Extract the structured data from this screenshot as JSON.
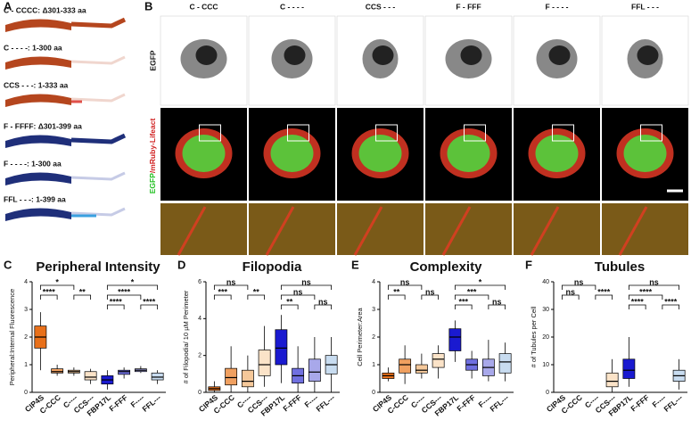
{
  "figure": {
    "A": {
      "letter": "A",
      "labels": [
        "C - CCCC: Δ301-333 aa",
        "C - - - -: 1-300 aa",
        "CCS - - -: 1-333 aa",
        "F - FFFF: Δ301-399 aa",
        "F - - - -: 1-300 aa",
        "FFL - - -: 1-399 aa"
      ]
    },
    "B": {
      "letter": "B",
      "columns": [
        "C - CCC",
        "C - - - -",
        "CCS - - -",
        "F - FFF",
        "F - - - -",
        "FFL - - -"
      ],
      "row1": "EGFP",
      "row2a": "EGFP",
      "row2b": "/mRuby-Lifeact"
    }
  },
  "chart_data": [
    {
      "type": "box",
      "panel": "C",
      "title": "Peripheral Intensity",
      "y_label": "Peripheral:Internal Fluorescence",
      "categories": [
        "CIP4S",
        "C-CCC",
        "C----",
        "CCS---",
        "FBP17L",
        "F-FFF",
        "F----",
        "FFL---"
      ],
      "colors": [
        "#e8701a",
        "#f0a060",
        "#f5c89a",
        "#fbe3c8",
        "#1a1ad0",
        "#7070e0",
        "#a8a8ea",
        "#c8dcf0"
      ],
      "boxes": [
        {
          "min": 0.8,
          "q1": 1.6,
          "median": 2.0,
          "q3": 2.4,
          "max": 2.9
        },
        {
          "min": 0.6,
          "q1": 0.7,
          "median": 0.75,
          "q3": 0.85,
          "max": 1.0
        },
        {
          "min": 0.6,
          "q1": 0.7,
          "median": 0.75,
          "q3": 0.8,
          "max": 0.9
        },
        {
          "min": 0.3,
          "q1": 0.45,
          "median": 0.55,
          "q3": 0.75,
          "max": 0.85
        },
        {
          "min": 0.1,
          "q1": 0.3,
          "median": 0.45,
          "q3": 0.6,
          "max": 0.8
        },
        {
          "min": 0.5,
          "q1": 0.65,
          "median": 0.75,
          "q3": 0.8,
          "max": 0.9
        },
        {
          "min": 0.7,
          "q1": 0.75,
          "median": 0.8,
          "q3": 0.85,
          "max": 0.95
        },
        {
          "min": 0.3,
          "q1": 0.45,
          "median": 0.55,
          "q3": 0.7,
          "max": 0.8
        }
      ],
      "ylim": [
        0,
        4
      ],
      "yticks": [
        0,
        1,
        2,
        3,
        4
      ],
      "annotations": [
        {
          "between": [
            "CIP4S",
            "C----"
          ],
          "label": "*"
        },
        {
          "between": [
            "CIP4S",
            "C-CCC"
          ],
          "label": "****"
        },
        {
          "between": [
            "C----",
            "CCS---"
          ],
          "label": "**"
        },
        {
          "between": [
            "FBP17L",
            "FFL---"
          ],
          "label": "*"
        },
        {
          "between": [
            "FBP17L",
            "F----"
          ],
          "label": "****"
        },
        {
          "between": [
            "FBP17L",
            "F-FFF"
          ],
          "label": "****"
        },
        {
          "between": [
            "F----",
            "FFL---"
          ],
          "label": "****"
        }
      ]
    },
    {
      "type": "box",
      "panel": "D",
      "title": "Filopodia",
      "y_label": "# of Filopodia/ 10 µM Perimeter",
      "categories": [
        "CIP4S",
        "C-CCC",
        "C----",
        "CCS---",
        "FBP17L",
        "F-FFF",
        "F----",
        "FFL---"
      ],
      "colors": [
        "#e8701a",
        "#f0a060",
        "#f5c89a",
        "#fbe3c8",
        "#1a1ad0",
        "#7070e0",
        "#a8a8ea",
        "#c8dcf0"
      ],
      "boxes": [
        {
          "min": 0,
          "q1": 0.1,
          "median": 0.2,
          "q3": 0.3,
          "max": 0.6
        },
        {
          "min": 0,
          "q1": 0.4,
          "median": 0.8,
          "q3": 1.3,
          "max": 2.5
        },
        {
          "min": 0,
          "q1": 0.3,
          "median": 0.6,
          "q3": 1.2,
          "max": 2.0
        },
        {
          "min": 0.3,
          "q1": 0.9,
          "median": 1.5,
          "q3": 2.3,
          "max": 3.6
        },
        {
          "min": 0.5,
          "q1": 1.5,
          "median": 2.4,
          "q3": 3.4,
          "max": 4.2
        },
        {
          "min": 0,
          "q1": 0.5,
          "median": 0.9,
          "q3": 1.3,
          "max": 2.5
        },
        {
          "min": 0,
          "q1": 0.6,
          "median": 1.1,
          "q3": 1.8,
          "max": 3.0
        },
        {
          "min": 0,
          "q1": 1.0,
          "median": 1.5,
          "q3": 2.0,
          "max": 3.0
        }
      ],
      "ylim": [
        0,
        6
      ],
      "yticks": [
        0,
        2,
        4,
        6
      ],
      "annotations": [
        {
          "between": [
            "CIP4S",
            "C----"
          ],
          "label": "ns"
        },
        {
          "between": [
            "CIP4S",
            "C-CCC"
          ],
          "label": "***"
        },
        {
          "between": [
            "C----",
            "CCS---"
          ],
          "label": "**"
        },
        {
          "between": [
            "FBP17L",
            "FFL---"
          ],
          "label": "ns"
        },
        {
          "between": [
            "FBP17L",
            "F----"
          ],
          "label": "ns"
        },
        {
          "between": [
            "FBP17L",
            "F-FFF"
          ],
          "label": "**"
        },
        {
          "between": [
            "F----",
            "FFL---"
          ],
          "label": "ns"
        }
      ]
    },
    {
      "type": "box",
      "panel": "E",
      "title": "Complexity",
      "y_label": "Cell Perimeter:Area",
      "categories": [
        "CIP4S",
        "C-CCC",
        "C----",
        "CCS---",
        "FBP17L",
        "F-FFF",
        "F----",
        "FFL---"
      ],
      "colors": [
        "#e8701a",
        "#f0a060",
        "#f5c89a",
        "#fbe3c8",
        "#1a1ad0",
        "#7070e0",
        "#a8a8ea",
        "#c8dcf0"
      ],
      "boxes": [
        {
          "min": 0.4,
          "q1": 0.5,
          "median": 0.6,
          "q3": 0.7,
          "max": 0.9
        },
        {
          "min": 0.3,
          "q1": 0.7,
          "median": 1.0,
          "q3": 1.2,
          "max": 1.7
        },
        {
          "min": 0.5,
          "q1": 0.7,
          "median": 0.8,
          "q3": 1.0,
          "max": 1.4
        },
        {
          "min": 0.5,
          "q1": 0.9,
          "median": 1.2,
          "q3": 1.4,
          "max": 1.7
        },
        {
          "min": 1.1,
          "q1": 1.5,
          "median": 2.0,
          "q3": 2.3,
          "max": 2.6
        },
        {
          "min": 0.5,
          "q1": 0.8,
          "median": 1.0,
          "q3": 1.2,
          "max": 1.5
        },
        {
          "min": 0.4,
          "q1": 0.6,
          "median": 0.9,
          "q3": 1.2,
          "max": 1.9
        },
        {
          "min": 0.4,
          "q1": 0.7,
          "median": 1.1,
          "q3": 1.4,
          "max": 1.8
        }
      ],
      "ylim": [
        0,
        4
      ],
      "yticks": [
        0,
        1,
        2,
        3,
        4
      ],
      "annotations": [
        {
          "between": [
            "CIP4S",
            "C----"
          ],
          "label": "ns"
        },
        {
          "between": [
            "CIP4S",
            "C-CCC"
          ],
          "label": "**"
        },
        {
          "between": [
            "C----",
            "CCS---"
          ],
          "label": "ns"
        },
        {
          "between": [
            "FBP17L",
            "FFL---"
          ],
          "label": "*"
        },
        {
          "between": [
            "FBP17L",
            "F----"
          ],
          "label": "***"
        },
        {
          "between": [
            "FBP17L",
            "F-FFF"
          ],
          "label": "***"
        },
        {
          "between": [
            "F----",
            "FFL---"
          ],
          "label": "ns"
        }
      ]
    },
    {
      "type": "box",
      "panel": "F",
      "title": "Tubules",
      "y_label": "# of Tubules per Cell",
      "categories": [
        "CIP4S",
        "C-CCC",
        "C----",
        "CCS---",
        "FBP17L",
        "F-FFF",
        "F----",
        "FFL---"
      ],
      "colors": [
        "#e8701a",
        "#f0a060",
        "#f5c89a",
        "#fbe3c8",
        "#1a1ad0",
        "#7070e0",
        "#a8a8ea",
        "#c8dcf0"
      ],
      "boxes": [
        null,
        null,
        null,
        {
          "min": 0,
          "q1": 2,
          "median": 4,
          "q3": 7,
          "max": 12
        },
        {
          "min": 2,
          "q1": 5,
          "median": 8,
          "q3": 12,
          "max": 20
        },
        null,
        null,
        {
          "min": 1,
          "q1": 4,
          "median": 6,
          "q3": 8,
          "max": 12
        }
      ],
      "ylim": [
        0,
        40
      ],
      "yticks": [
        0,
        10,
        20,
        30,
        40
      ],
      "annotations": [
        {
          "between": [
            "CIP4S",
            "C----"
          ],
          "label": "ns"
        },
        {
          "between": [
            "CIP4S",
            "C-CCC"
          ],
          "label": "ns"
        },
        {
          "between": [
            "C----",
            "CCS---"
          ],
          "label": "****"
        },
        {
          "between": [
            "FBP17L",
            "FFL---"
          ],
          "label": "ns"
        },
        {
          "between": [
            "FBP17L",
            "F----"
          ],
          "label": "****"
        },
        {
          "between": [
            "FBP17L",
            "F-FFF"
          ],
          "label": "****"
        },
        {
          "between": [
            "F----",
            "FFL---"
          ],
          "label": "****"
        }
      ]
    }
  ]
}
